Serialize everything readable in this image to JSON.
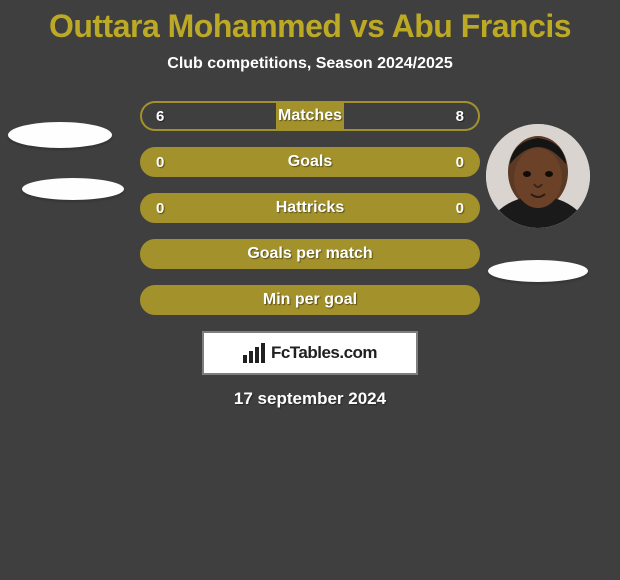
{
  "background_color": "#3f3f3f",
  "title": {
    "text": "Outtara Mohammed vs Abu Francis",
    "color": "#bca925",
    "fontsize": 32,
    "fontweight": 800
  },
  "subtitle": {
    "text": "Club competitions, Season 2024/2025",
    "color": "#ffffff",
    "fontsize": 16
  },
  "player_left": {
    "name": "Outtara Mohammed",
    "has_photo": false
  },
  "player_right": {
    "name": "Abu Francis",
    "has_photo": true
  },
  "bar_track_color": "#a3912b",
  "bar_fill_color": "#3f3f3f",
  "bar_text_color": "#ffffff",
  "bars": [
    {
      "label": "Matches",
      "left_val": "6",
      "right_val": "8",
      "left_pct": 40,
      "right_pct": 40,
      "show_vals": true
    },
    {
      "label": "Goals",
      "left_val": "0",
      "right_val": "0",
      "left_pct": 0,
      "right_pct": 0,
      "show_vals": true
    },
    {
      "label": "Hattricks",
      "left_val": "0",
      "right_val": "0",
      "left_pct": 0,
      "right_pct": 0,
      "show_vals": true
    },
    {
      "label": "Goals per match",
      "left_val": "",
      "right_val": "",
      "left_pct": 0,
      "right_pct": 0,
      "show_vals": false
    },
    {
      "label": "Min per goal",
      "left_val": "",
      "right_val": "",
      "left_pct": 0,
      "right_pct": 0,
      "show_vals": false
    }
  ],
  "watermark": {
    "text": "FcTables.com",
    "bg": "#ffffff",
    "border": "#7e7e7e",
    "text_color": "#202020"
  },
  "date": {
    "text": "17 september 2024",
    "color": "#ffffff",
    "fontsize": 17
  }
}
